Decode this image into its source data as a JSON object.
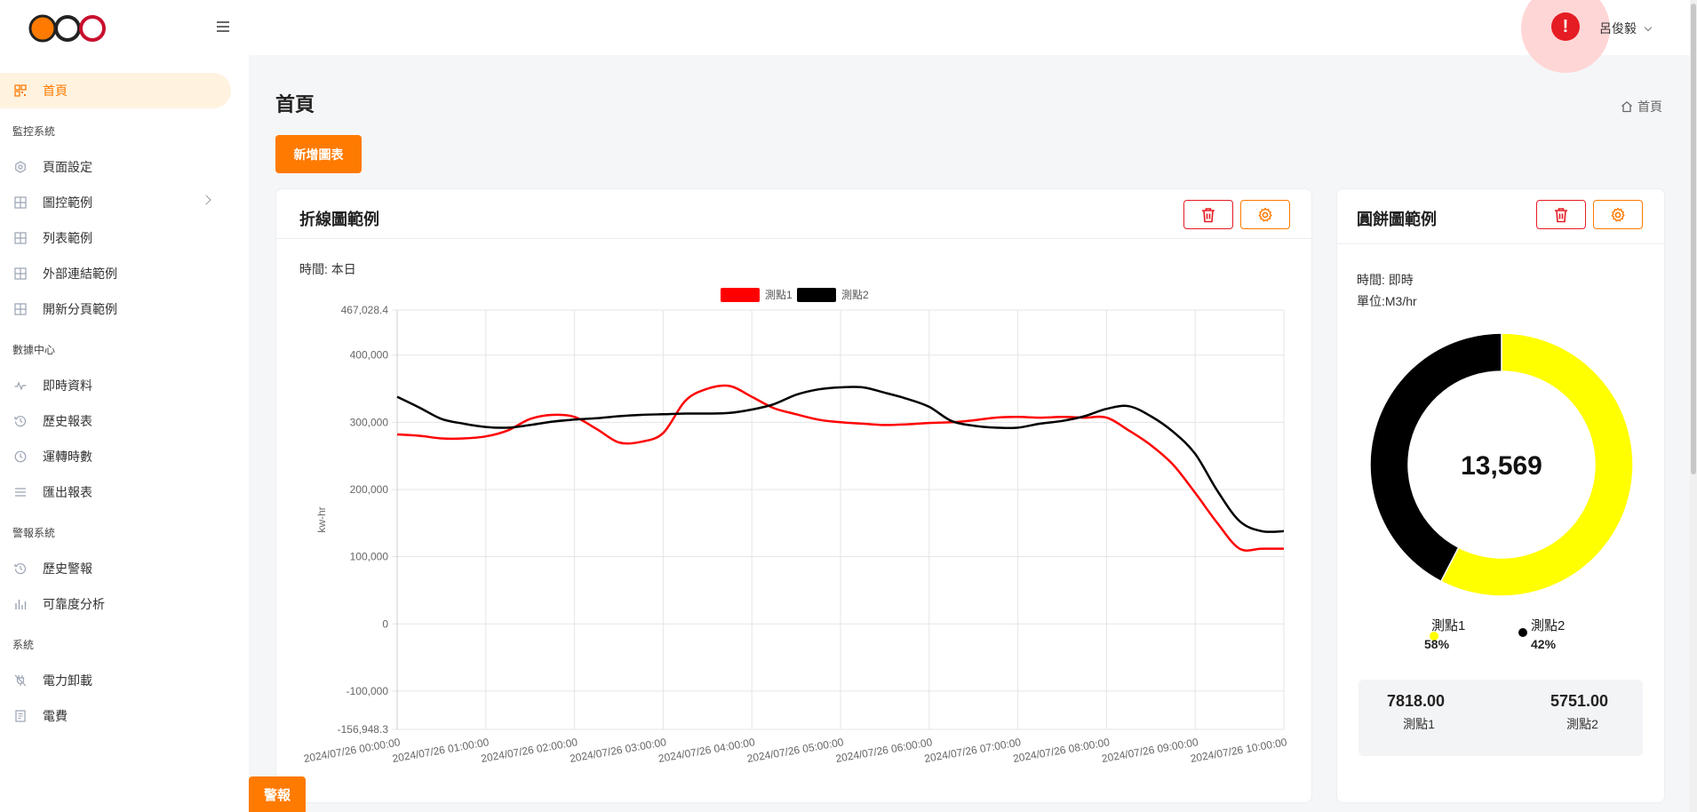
{
  "header": {
    "user_name": "呂俊毅",
    "alert_glyph": "!"
  },
  "sidebar": {
    "items": [
      {
        "label": "首頁",
        "type": "item",
        "icon": "dashboard-icon",
        "active": true
      },
      {
        "label": "監控系統",
        "type": "section"
      },
      {
        "label": "頁面設定",
        "type": "item",
        "icon": "settings-hex-icon"
      },
      {
        "label": "圖控範例",
        "type": "item",
        "icon": "grid-icon",
        "expandable": true
      },
      {
        "label": "列表範例",
        "type": "item",
        "icon": "grid-icon"
      },
      {
        "label": "外部連結範例",
        "type": "item",
        "icon": "grid-icon"
      },
      {
        "label": "開新分頁範例",
        "type": "item",
        "icon": "grid-icon"
      },
      {
        "label": "數據中心",
        "type": "section"
      },
      {
        "label": "即時資料",
        "type": "item",
        "icon": "pulse-icon"
      },
      {
        "label": "歷史報表",
        "type": "item",
        "icon": "history-icon"
      },
      {
        "label": "運轉時數",
        "type": "item",
        "icon": "clock-icon"
      },
      {
        "label": "匯出報表",
        "type": "item",
        "icon": "list-icon"
      },
      {
        "label": "警報系統",
        "type": "section"
      },
      {
        "label": "歷史警報",
        "type": "item",
        "icon": "history-icon"
      },
      {
        "label": "可靠度分析",
        "type": "item",
        "icon": "bar-chart-icon"
      },
      {
        "label": "系統",
        "type": "section"
      },
      {
        "label": "電力卸載",
        "type": "item",
        "icon": "plug-off-icon"
      },
      {
        "label": "電費",
        "type": "item",
        "icon": "bill-icon"
      }
    ]
  },
  "page": {
    "title": "首頁",
    "breadcrumb": "首頁",
    "add_button": "新增圖表",
    "alarm_tab": "警報"
  },
  "line_card": {
    "title": "折線圖範例",
    "time_label": "時間: 本日"
  },
  "pie_card": {
    "title": "圓餅圖範例",
    "time_label": "時間: 即時",
    "unit_label": "單位:M3/hr",
    "center_value": "13,569",
    "legend": [
      {
        "name": "測點1",
        "percent": "58%",
        "color": "#ffff00"
      },
      {
        "name": "測點2",
        "percent": "42%",
        "color": "#000000"
      }
    ],
    "stats": [
      {
        "value": "7818.00",
        "label": "測點1"
      },
      {
        "value": "5751.00",
        "label": "測點2"
      }
    ]
  },
  "chart_data": [
    {
      "type": "line",
      "ylabel": "kw-hr",
      "ylim": [
        -156948.3,
        467028.4
      ],
      "y_ticks": [
        467028.4,
        400000,
        300000,
        200000,
        100000,
        0,
        -100000,
        -156948.3
      ],
      "y_tick_labels": [
        "467,028.4",
        "400,000",
        "300,000",
        "200,000",
        "100,000",
        "0",
        "-100,000",
        "-156,948.3"
      ],
      "x": [
        "2024/07/26 00:00:00",
        "2024/07/26 01:00:00",
        "2024/07/26 02:00:00",
        "2024/07/26 03:00:00",
        "2024/07/26 04:00:00",
        "2024/07/26 05:00:00",
        "2024/07/26 06:00:00",
        "2024/07/26 07:00:00",
        "2024/07/26 08:00:00",
        "2024/07/26 09:00:00",
        "2024/07/26 10:00:00"
      ],
      "grid": true,
      "legend_position": "top-center",
      "series": [
        {
          "name": "測點1",
          "color": "#ff0000",
          "x": [
            0,
            0.25,
            0.5,
            0.75,
            1,
            1.25,
            1.5,
            1.75,
            2,
            2.25,
            2.5,
            2.75,
            3,
            3.25,
            3.5,
            3.75,
            4,
            4.25,
            4.5,
            4.75,
            5,
            5.25,
            5.5,
            5.75,
            6,
            6.25,
            6.5,
            6.75,
            7,
            7.25,
            7.5,
            7.75,
            8,
            8.25,
            8.5,
            8.75,
            9,
            9.25,
            9.5,
            9.75,
            10
          ],
          "values": [
            282000,
            280000,
            276000,
            276000,
            279000,
            288000,
            305000,
            311000,
            308000,
            290000,
            270000,
            271000,
            284000,
            332000,
            350000,
            354000,
            338000,
            321000,
            312000,
            304000,
            300000,
            298000,
            296000,
            297000,
            299000,
            300000,
            303000,
            307000,
            308000,
            307000,
            308000,
            307000,
            307000,
            288000,
            266000,
            237000,
            195000,
            150000,
            112000,
            112000,
            112000
          ]
        },
        {
          "name": "測點2",
          "color": "#000000",
          "x": [
            0,
            0.25,
            0.5,
            0.75,
            1,
            1.25,
            1.5,
            1.75,
            2,
            2.25,
            2.5,
            2.75,
            3,
            3.25,
            3.5,
            3.75,
            4,
            4.25,
            4.5,
            4.75,
            5,
            5.25,
            5.5,
            5.75,
            6,
            6.25,
            6.5,
            6.75,
            7,
            7.25,
            7.5,
            7.75,
            8,
            8.25,
            8.5,
            8.75,
            9,
            9.25,
            9.5,
            9.75,
            10
          ],
          "values": [
            338000,
            322000,
            305000,
            298000,
            293000,
            292000,
            296000,
            301000,
            304000,
            306000,
            309000,
            311000,
            312000,
            313000,
            313000,
            314000,
            319000,
            327000,
            341000,
            349000,
            352000,
            352000,
            344000,
            335000,
            323000,
            302000,
            295000,
            292000,
            292000,
            298000,
            302000,
            309000,
            320000,
            324000,
            309000,
            286000,
            253000,
            198000,
            153000,
            138000,
            138000
          ]
        }
      ]
    },
    {
      "type": "pie",
      "donut": true,
      "categories": [
        "測點1",
        "測點2"
      ],
      "values": [
        7818.0,
        5751.0
      ],
      "colors": [
        "#ffff00",
        "#000000"
      ],
      "center_label": "13,569",
      "legend_position": "bottom"
    }
  ]
}
